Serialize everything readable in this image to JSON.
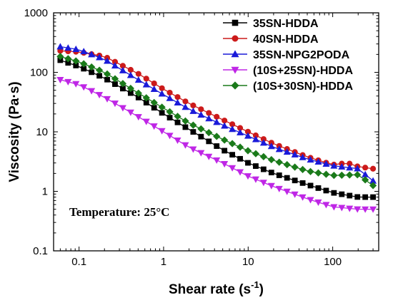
{
  "chart_data": {
    "type": "line",
    "title": "",
    "xlabel": "Shear rate (s",
    "xlabel_sup": "-1",
    "xlabel_close": ")",
    "ylabel": "Viscosity (Pa·s)",
    "xscale": "log",
    "yscale": "log",
    "xlim": [
      0.05,
      350
    ],
    "ylim": [
      0.1,
      1000
    ],
    "xticks": [
      {
        "value": 0.1,
        "label": "0.1"
      },
      {
        "value": 1,
        "label": "1"
      },
      {
        "value": 10,
        "label": "10"
      },
      {
        "value": 100,
        "label": "100"
      }
    ],
    "yticks": [
      {
        "value": 0.1,
        "label": "0.1"
      },
      {
        "value": 1,
        "label": "1"
      },
      {
        "value": 10,
        "label": "10"
      },
      {
        "value": 100,
        "label": "100"
      },
      {
        "value": 1000,
        "label": "1000"
      }
    ],
    "grid": false,
    "legend_position": "top-right",
    "annotation": "Temperature: 25°C",
    "x_range": [
      0.06,
      300
    ],
    "n_points": 41,
    "series": [
      {
        "name": "35SN-HDDA",
        "color": "#000000",
        "marker": "square",
        "anchors": [
          [
            0.06,
            160
          ],
          [
            0.1,
            125
          ],
          [
            0.2,
            80
          ],
          [
            0.5,
            38
          ],
          [
            1,
            20
          ],
          [
            2,
            11
          ],
          [
            5,
            5
          ],
          [
            10,
            3
          ],
          [
            20,
            2
          ],
          [
            50,
            1.3
          ],
          [
            100,
            0.95
          ],
          [
            200,
            0.8
          ],
          [
            300,
            0.8
          ]
        ]
      },
      {
        "name": "40SN-HDDA",
        "color": "#cc1a1a",
        "marker": "circle",
        "anchors": [
          [
            0.06,
            230
          ],
          [
            0.1,
            220
          ],
          [
            0.2,
            185
          ],
          [
            0.5,
            95
          ],
          [
            1,
            52
          ],
          [
            2,
            30
          ],
          [
            5,
            16
          ],
          [
            10,
            10
          ],
          [
            20,
            6.3
          ],
          [
            50,
            3.8
          ],
          [
            100,
            2.8
          ],
          [
            150,
            3
          ],
          [
            200,
            2.6
          ],
          [
            300,
            2.4
          ]
        ]
      },
      {
        "name": "35SN-NPG2PODA",
        "color": "#1a1ad9",
        "marker": "triangle-up",
        "anchors": [
          [
            0.06,
            270
          ],
          [
            0.1,
            240
          ],
          [
            0.2,
            165
          ],
          [
            0.5,
            75
          ],
          [
            1,
            42
          ],
          [
            2,
            24
          ],
          [
            5,
            13
          ],
          [
            10,
            8.5
          ],
          [
            20,
            5.5
          ],
          [
            50,
            3.5
          ],
          [
            100,
            2.7
          ],
          [
            200,
            2.4
          ],
          [
            300,
            1.5
          ]
        ]
      },
      {
        "name": "(10S+25SN)-HDDA",
        "color": "#bf26e6",
        "marker": "triangle-down",
        "anchors": [
          [
            0.06,
            75
          ],
          [
            0.1,
            62
          ],
          [
            0.2,
            38
          ],
          [
            0.5,
            18
          ],
          [
            1,
            10
          ],
          [
            2,
            5.5
          ],
          [
            5,
            3
          ],
          [
            10,
            1.8
          ],
          [
            20,
            1.2
          ],
          [
            50,
            0.75
          ],
          [
            100,
            0.55
          ],
          [
            200,
            0.5
          ],
          [
            300,
            0.5
          ]
        ]
      },
      {
        "name": "(10S+30SN)-HDDA",
        "color": "#1a7a1a",
        "marker": "diamond",
        "anchors": [
          [
            0.06,
            185
          ],
          [
            0.1,
            150
          ],
          [
            0.2,
            100
          ],
          [
            0.5,
            45
          ],
          [
            1,
            25
          ],
          [
            2,
            14
          ],
          [
            5,
            7.5
          ],
          [
            10,
            4.8
          ],
          [
            20,
            3.3
          ],
          [
            50,
            2.2
          ],
          [
            100,
            1.85
          ],
          [
            200,
            1.9
          ],
          [
            300,
            1.25
          ]
        ]
      }
    ]
  }
}
